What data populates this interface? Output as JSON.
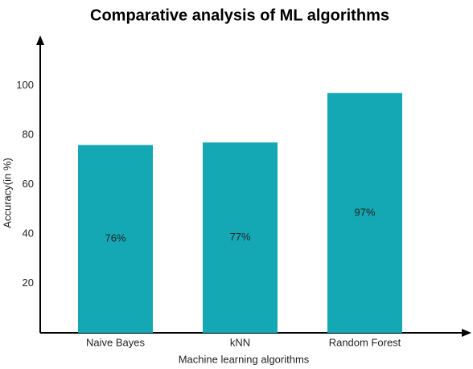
{
  "chart_data": {
    "type": "bar",
    "title": "Comparative analysis of ML algorithms",
    "x_label": "Machine learning algorithms",
    "y_label": "Accuracy(in %)",
    "categories": [
      "Naive Bayes",
      "kNN",
      "Random Forest"
    ],
    "values": [
      76,
      77,
      97
    ],
    "value_labels": [
      "76%",
      "77%",
      "97%"
    ],
    "color": "#14a8b4",
    "ylim": [
      0,
      120
    ],
    "yticks": [
      20,
      40,
      60,
      80,
      100
    ],
    "grid": false
  }
}
